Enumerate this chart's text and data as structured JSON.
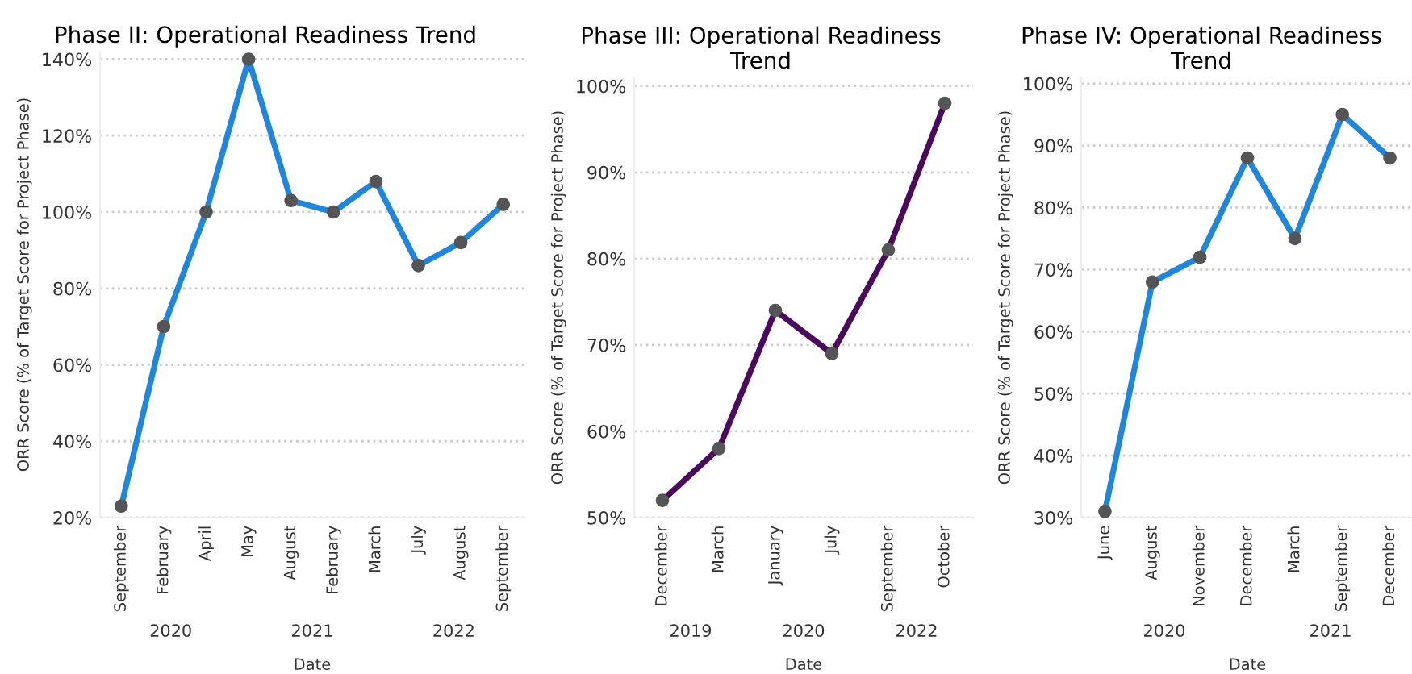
{
  "chart_data": [
    {
      "type": "line",
      "title": "Phase II: Operational Readiness Trend",
      "xlabel": "Date",
      "ylabel": "ORR Score (% of Target Score for Project Phase)",
      "categories": [
        "September",
        "February",
        "April",
        "May",
        "August",
        "February",
        "March",
        "July",
        "August",
        "September"
      ],
      "series": [
        {
          "color": "#1f86e0",
          "values": [
            23,
            70,
            100,
            140,
            103,
            100,
            108,
            86,
            92,
            102
          ]
        }
      ],
      "ylim": [
        20,
        142
      ],
      "yticks": [
        {
          "value": 20,
          "label": "20%"
        },
        {
          "value": 40,
          "label": "40%"
        },
        {
          "value": 60,
          "label": "60%"
        },
        {
          "value": 80,
          "label": "80%"
        },
        {
          "value": 100,
          "label": "100%"
        },
        {
          "value": 120,
          "label": "120%"
        },
        {
          "value": 140,
          "label": "140%"
        }
      ],
      "grid": "y",
      "marker": "circle",
      "line_style": "solid",
      "annotations": [
        "2020",
        "2021",
        "2022"
      ]
    },
    {
      "type": "line",
      "title": "Phase III: Operational Readiness Trend",
      "xlabel": "Date",
      "ylabel": "ORR Score (% of Target Score for Project Phase)",
      "categories": [
        "December",
        "March",
        "January",
        "July",
        "September",
        "October"
      ],
      "series": [
        {
          "color": "#4b0a5e",
          "values": [
            52,
            58,
            74,
            69,
            81,
            98
          ]
        }
      ],
      "ylim": [
        50,
        101
      ],
      "yticks": [
        {
          "value": 50,
          "label": "50%"
        },
        {
          "value": 60,
          "label": "60%"
        },
        {
          "value": 70,
          "label": "70%"
        },
        {
          "value": 80,
          "label": "80%"
        },
        {
          "value": 90,
          "label": "90%"
        },
        {
          "value": 100,
          "label": "100%"
        }
      ],
      "grid": "y",
      "marker": "circle",
      "line_style": "solid",
      "annotations": [
        "2019",
        "2020",
        "2022"
      ]
    },
    {
      "type": "line",
      "title": "Phase IV: Operational Readiness Trend",
      "xlabel": "Date",
      "ylabel": "ORR Score (% of Target Score for Project Phase)",
      "categories": [
        "June",
        "August",
        "November",
        "December",
        "March",
        "September",
        "December"
      ],
      "series": [
        {
          "color": "#1f86e0",
          "values": [
            31,
            68,
            72,
            88,
            75,
            95,
            88
          ]
        }
      ],
      "ylim": [
        30,
        101
      ],
      "yticks": [
        {
          "value": 30,
          "label": "30%"
        },
        {
          "value": 40,
          "label": "40%"
        },
        {
          "value": 50,
          "label": "50%"
        },
        {
          "value": 60,
          "label": "60%"
        },
        {
          "value": 70,
          "label": "70%"
        },
        {
          "value": 80,
          "label": "80%"
        },
        {
          "value": 90,
          "label": "90%"
        },
        {
          "value": 100,
          "label": "100%"
        }
      ],
      "grid": "y",
      "marker": "circle",
      "line_style": "solid",
      "annotations": [
        "2020",
        "2021"
      ]
    }
  ]
}
